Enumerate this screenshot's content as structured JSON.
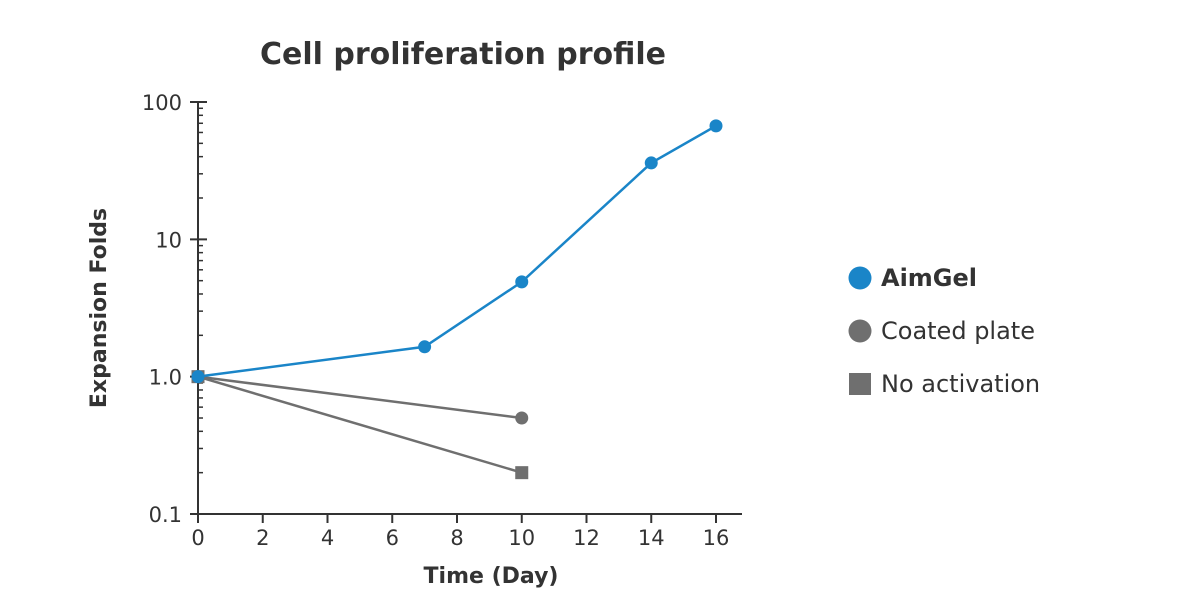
{
  "chart_data": {
    "type": "line",
    "title": "Cell proliferation profile",
    "xlabel": "Time (Day)",
    "ylabel": "Expansion Folds",
    "xlim": [
      0,
      16
    ],
    "ylim": [
      0.1,
      100
    ],
    "y_scale": "log",
    "x_ticks": [
      "0",
      "2",
      "4",
      "6",
      "8",
      "10",
      "12",
      "14",
      "16"
    ],
    "y_ticks": [
      "0.1",
      "1.0",
      "10",
      "100"
    ],
    "grid": false,
    "legend_position": "right",
    "series": [
      {
        "name": "AimGel",
        "color": "#1a85c8",
        "marker": "circle",
        "x": [
          0,
          7,
          10,
          14,
          16
        ],
        "y": [
          1.0,
          1.65,
          4.9,
          36,
          67
        ]
      },
      {
        "name": "Coated plate",
        "color": "#6f6f6f",
        "marker": "circle",
        "x": [
          0,
          10
        ],
        "y": [
          1.0,
          0.5
        ]
      },
      {
        "name": "No activation",
        "color": "#6f6f6f",
        "marker": "square",
        "x": [
          0,
          10
        ],
        "y": [
          1.0,
          0.2
        ]
      }
    ]
  }
}
